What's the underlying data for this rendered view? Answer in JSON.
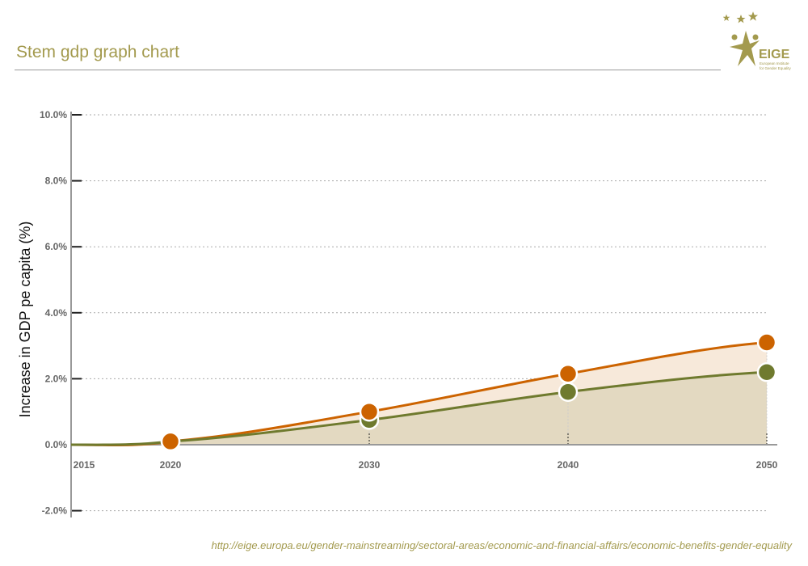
{
  "header": {
    "title": "Stem gdp graph chart"
  },
  "logo": {
    "text": "EIGE",
    "subtitle": "European Institute for Gender Equality"
  },
  "source": "http://eige.europa.eu/gender-mainstreaming/sectoral-areas/economic-and-financial-affairs/economic-benefits-gender-equality",
  "colors": {
    "orange": "#cc6300",
    "green": "#6f7a2e",
    "orange_fill": "#f7e9da",
    "green_fill": "#e3d9c1",
    "accent": "#a39a4e"
  },
  "chart_data": {
    "type": "area",
    "title": "",
    "xlabel": "",
    "ylabel": "Increase in GDP pe capita (%)",
    "x": [
      2015,
      2020,
      2030,
      2040,
      2050
    ],
    "x_tick_labels": [
      "2015",
      "2020",
      "2030",
      "2040",
      "2050"
    ],
    "ylim": [
      -2,
      10
    ],
    "y_ticks": [
      -2,
      0,
      2,
      4,
      6,
      8,
      10
    ],
    "y_tick_labels": [
      "-2.0%",
      "0.0%",
      "2.0%",
      "4.0%",
      "6.0%",
      "8.0%",
      "10.0%"
    ],
    "grid": true,
    "series": [
      {
        "color": "#cc6300",
        "values": [
          0,
          0.1,
          1.0,
          2.15,
          3.1
        ],
        "markers": [
          false,
          true,
          true,
          true,
          true
        ]
      },
      {
        "color": "#6f7a2e",
        "values": [
          0,
          0.1,
          0.75,
          1.6,
          2.2
        ],
        "markers": [
          false,
          true,
          true,
          true,
          true
        ]
      }
    ]
  }
}
